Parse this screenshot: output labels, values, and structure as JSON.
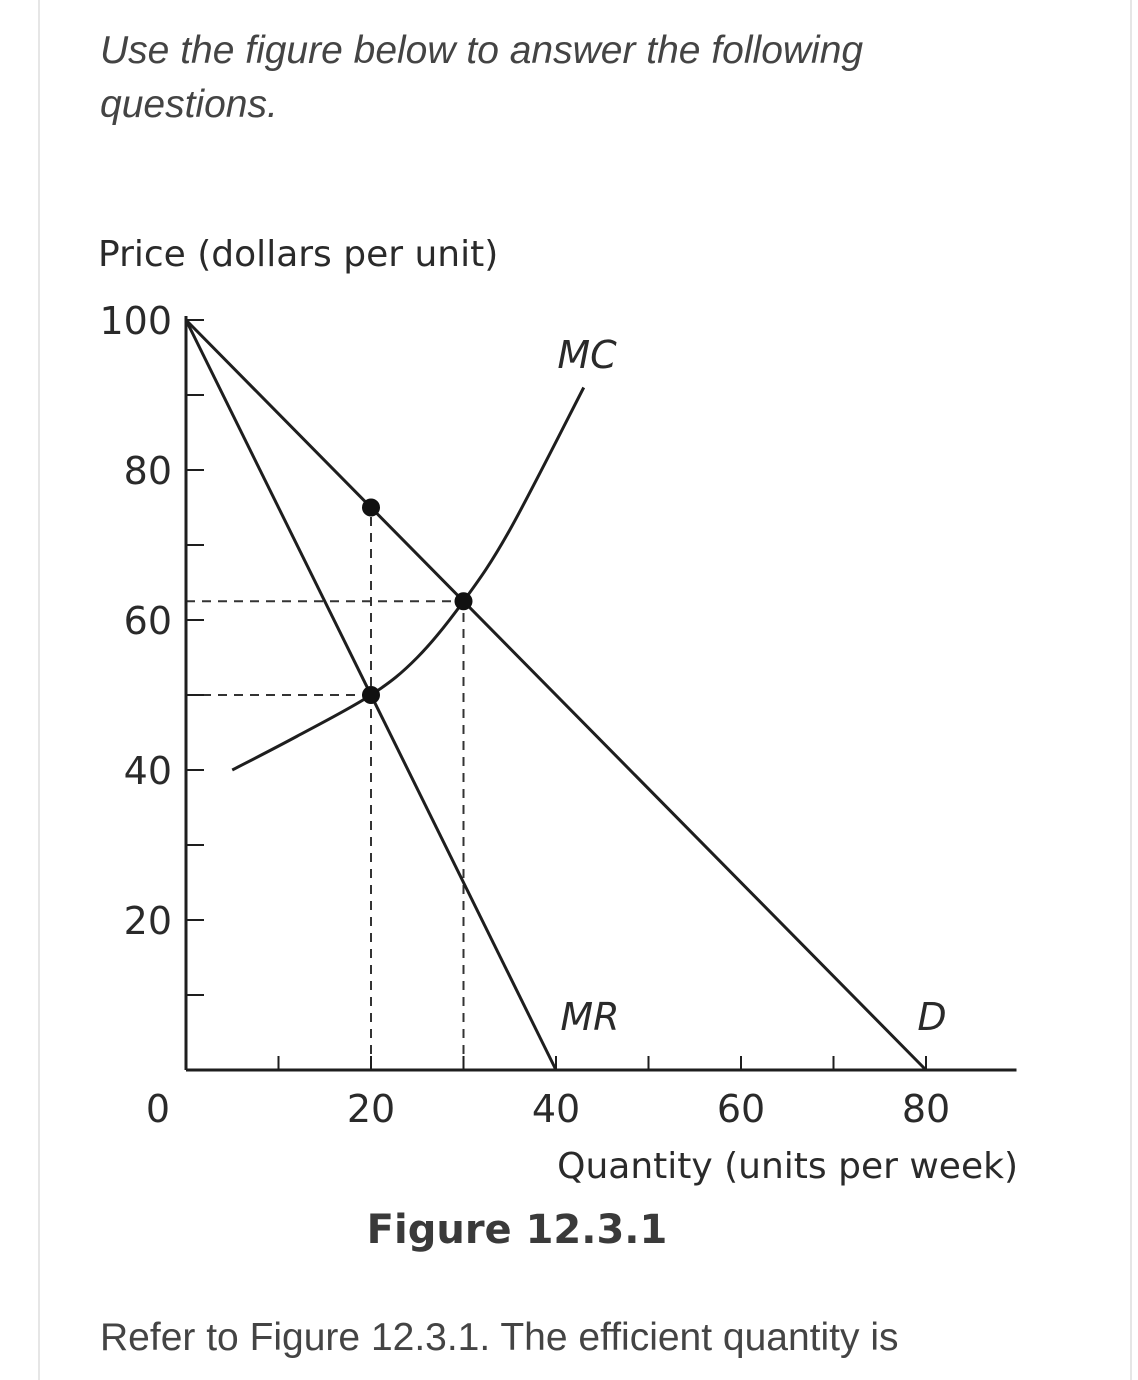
{
  "intro_text": "Use the figure below to answer the following questions.",
  "question_text": "Refer to Figure 12.3.1. The efficient quantity is",
  "figure_caption": "Figure 12.3.1",
  "chart_data": {
    "type": "line",
    "title": "",
    "xlabel": "Quantity (units per week)",
    "ylabel": "Price (dollars per unit)",
    "xlim": [
      0,
      90
    ],
    "ylim": [
      0,
      100
    ],
    "x_ticks": [
      0,
      20,
      40,
      60,
      80
    ],
    "y_ticks": [
      20,
      40,
      60,
      80,
      100
    ],
    "x_tick_labels": [
      "0",
      "20",
      "40",
      "60",
      "80"
    ],
    "y_tick_labels": [
      "20",
      "40",
      "60",
      "80",
      "100"
    ],
    "x_minor_ticks": [
      10,
      30,
      50,
      70
    ],
    "y_minor_ticks": [
      10,
      30,
      50,
      70,
      90
    ],
    "series": [
      {
        "name": "D",
        "type": "line",
        "x": [
          0,
          80
        ],
        "y": [
          100,
          0
        ]
      },
      {
        "name": "MR",
        "type": "line",
        "x": [
          0,
          40
        ],
        "y": [
          100,
          0
        ]
      },
      {
        "name": "MC",
        "type": "curve",
        "x": [
          5,
          12,
          20,
          25,
          30,
          35,
          43
        ],
        "y": [
          40,
          44.5,
          50,
          55,
          62.5,
          72,
          91
        ]
      }
    ],
    "points": [
      {
        "x": 20,
        "y": 75
      },
      {
        "x": 20,
        "y": 50
      },
      {
        "x": 30,
        "y": 62.5
      }
    ],
    "dashed_lines": [
      {
        "from": [
          0,
          62.5
        ],
        "to": [
          30,
          62.5
        ]
      },
      {
        "from": [
          0,
          50
        ],
        "to": [
          20,
          50
        ]
      },
      {
        "from": [
          20,
          0
        ],
        "to": [
          20,
          75
        ]
      },
      {
        "from": [
          30,
          0
        ],
        "to": [
          30,
          62.5
        ]
      }
    ]
  }
}
